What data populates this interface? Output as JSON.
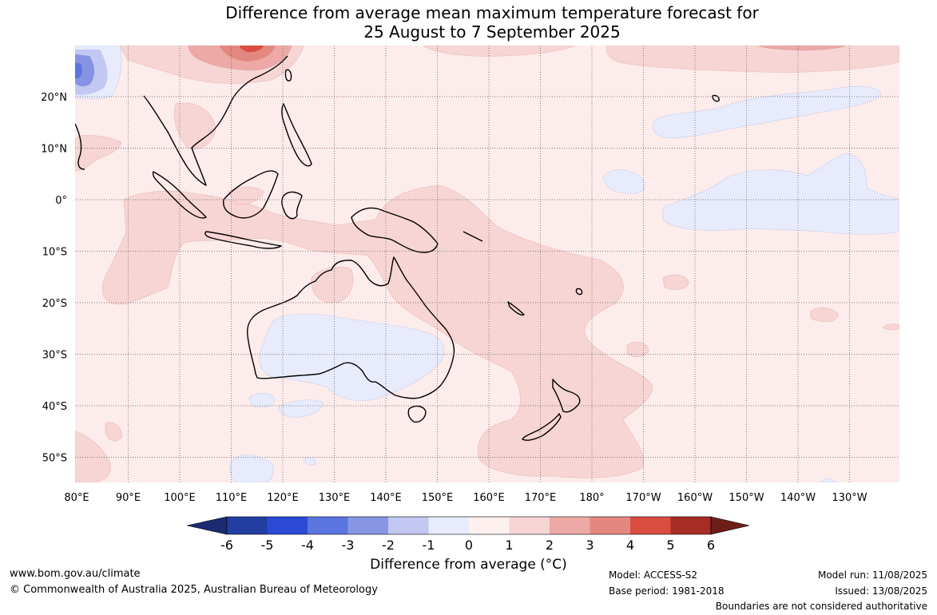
{
  "title": {
    "line1": "Difference from average mean maximum temperature forecast for",
    "line2": "25 August to 7 September 2025"
  },
  "map": {
    "lon_ticks": [
      "80°E",
      "90°E",
      "100°E",
      "110°E",
      "120°E",
      "130°E",
      "140°E",
      "150°E",
      "160°E",
      "170°E",
      "180°",
      "170°W",
      "160°W",
      "150°W",
      "140°W",
      "130°W"
    ],
    "lat_ticks": [
      "20°N",
      "10°N",
      "0°",
      "10°S",
      "20°S",
      "30°S",
      "40°S",
      "50°S"
    ],
    "colors": {
      "land_outline": "#000000",
      "grid": "#555555",
      "anomaly_0_1": "#fceceb",
      "anomaly_1_2": "#f6d5d4",
      "anomaly_2_3": "#eca9a5",
      "anomaly_3_4": "#e38880",
      "anomaly_4_5": "#d94c3f",
      "anomaly_minus1_0": "#e8ebfb",
      "anomaly_minus2_minus1": "#c2c8f2",
      "anomaly_minus3_minus2": "#8693e3"
    }
  },
  "colorbar": {
    "ticks": [
      "-6",
      "-5",
      "-4",
      "-3",
      "-2",
      "-1",
      "0",
      "1",
      "2",
      "3",
      "4",
      "5",
      "6"
    ],
    "segment_colors": [
      "#233ea3",
      "#2a4ad6",
      "#5a75e0",
      "#8896e6",
      "#c2c8f2",
      "#e8ebfb",
      "#fdf0ef",
      "#f6d5d4",
      "#eca9a5",
      "#e38880",
      "#d94c3f",
      "#a82c26"
    ],
    "under_color": "#1b2a73",
    "over_color": "#6e1e19",
    "title": "Difference from average (°C)"
  },
  "footer": {
    "website": "www.bom.gov.au/climate",
    "copyright": "© Commonwealth of Australia 2025, Australian Bureau of Meteorology",
    "model": "Model: ACCESS-S2",
    "base_period": "Base period: 1981-2018",
    "model_run": "Model run: 11/08/2025",
    "issued": "Issued: 13/08/2025",
    "disclaimer": "Boundaries are not considered authoritative"
  }
}
